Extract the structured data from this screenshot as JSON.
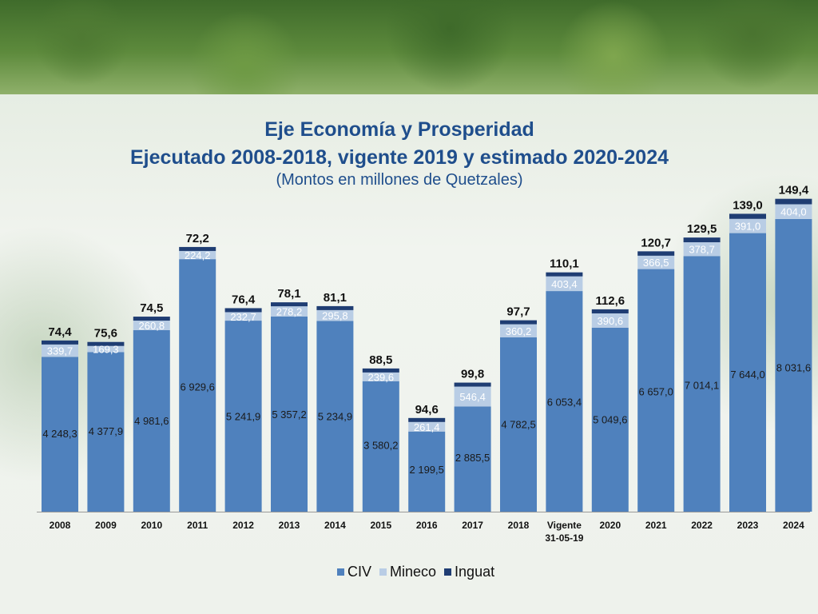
{
  "chart_data": {
    "type": "bar",
    "stacked": true,
    "title": "Eje Economía y Prosperidad",
    "subtitle": "Ejecutado 2008-2018, vigente 2019 y estimado 2020-2024",
    "note": "(Montos en millones de Quetzales)",
    "categories": [
      "2008",
      "2009",
      "2010",
      "2011",
      "2012",
      "2013",
      "2014",
      "2015",
      "2016",
      "2017",
      "2018",
      "Vigente\n31-05-19",
      "2020",
      "2021",
      "2022",
      "2023",
      "2024"
    ],
    "series": [
      {
        "name": "CIV",
        "color": "#4f81bd",
        "values": [
          4248.3,
          4377.9,
          4981.6,
          6929.6,
          5241.9,
          5357.2,
          5234.9,
          3580.2,
          2199.5,
          2885.5,
          4782.5,
          6053.4,
          5049.6,
          6657.0,
          7014.1,
          7644.0,
          8031.6
        ],
        "labels": [
          "4 248,3",
          "4 377,9",
          "4 981,6",
          "6 929,6",
          "5 241,9",
          "5 357,2",
          "5 234,9",
          "3 580,2",
          "2 199,5",
          "2 885,5",
          "4 782,5",
          "6 053,4",
          "5 049,6",
          "6 657,0",
          "7 014,1",
          "7 644,0",
          "8 031,6"
        ]
      },
      {
        "name": "Mineco",
        "color": "#b9cde5",
        "values": [
          339.7,
          169.3,
          260.8,
          224.2,
          232.7,
          278.2,
          295.8,
          239.6,
          261.4,
          546.4,
          360.2,
          403.4,
          390.6,
          366.5,
          378.7,
          391.0,
          404.0
        ],
        "labels": [
          "339,7",
          "169,3",
          "260,8",
          "224,2",
          "232,7",
          "278,2",
          "295,8",
          "239,6",
          "261,4",
          "546,4",
          "360,2",
          "403,4",
          "390,6",
          "366,5",
          "378,7",
          "391,0",
          "404,0"
        ]
      },
      {
        "name": "Inguat",
        "color": "#1f3d73",
        "values": [
          74.4,
          75.6,
          74.5,
          72.2,
          76.4,
          78.1,
          81.1,
          88.5,
          94.6,
          99.8,
          97.7,
          110.1,
          112.6,
          120.7,
          129.5,
          139.0,
          149.4
        ],
        "labels": [
          "74,4",
          "75,6",
          "74,5",
          "72,2",
          "76,4",
          "78,1",
          "81,1",
          "88,5",
          "94,6",
          "99,8",
          "97,7",
          "110,1",
          "112,6",
          "120,7",
          "129,5",
          "139,0",
          "149,4"
        ]
      }
    ],
    "ylim": [
      0,
      8600
    ],
    "grid": false,
    "legend_position": "bottom"
  }
}
